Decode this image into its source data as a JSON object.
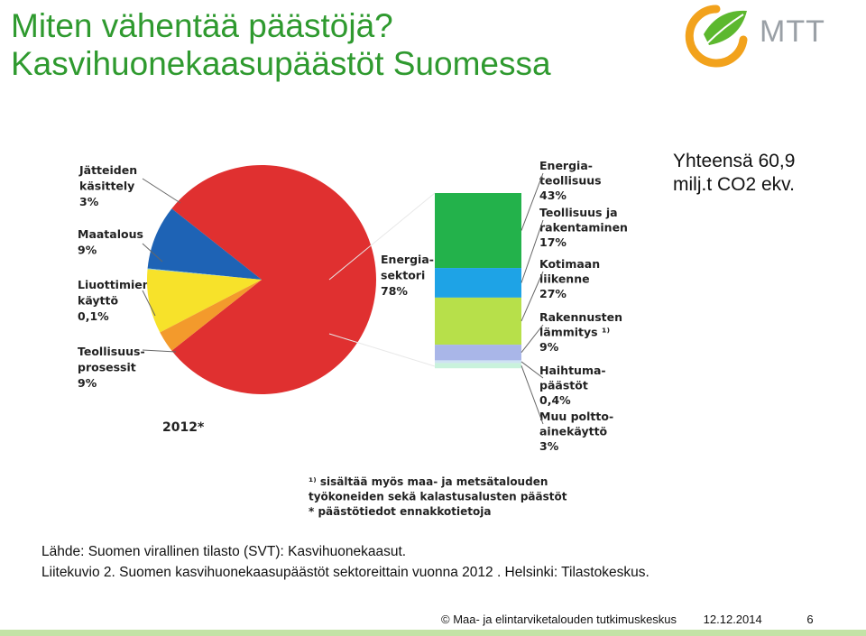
{
  "slide": {
    "title_line1": "Miten vähentää päästöjä?",
    "title_line2": "Kasvihuonekaasupäästöt Suomessa",
    "logo_text": "MTT",
    "total_line1": "Yhteensä 60,9",
    "total_line2": "milj.t CO2 ekv.",
    "source_line1": "Lähde: Suomen virallinen tilasto (SVT): Kasvihuonekaasut.",
    "source_line2": "Liitekuvio 2. Suomen kasvihuonekaasupäästöt sektoreittain vuonna 2012 . Helsinki: Tilastokeskus.",
    "footer_org": "© Maa- ja elintarviketalouden tutkimuskeskus",
    "footer_date": "12.12.2014",
    "footer_page": "6"
  },
  "colors": {
    "title": "#2f9a2f",
    "energy": "#e03030",
    "waste": "#f39a2c",
    "agriculture": "#f7e22a",
    "solvents": "#7fc6e8",
    "industrial": "#1e63b5",
    "bar_energy_industry": "#23b24b",
    "bar_industry_construction": "#1ea3e6",
    "bar_transport": "#b7e04a",
    "bar_buildings": "#a9b6e8",
    "bar_fugitive": "#cfe2f3",
    "bar_other_fuel": "#c9f2dc",
    "footer_bar": "#c3e3a6"
  },
  "chart_data": {
    "type": "pie",
    "year_label": "2012*",
    "pie": {
      "slices": [
        {
          "label_lines": [
            "Energia-",
            "sektori",
            "78%"
          ],
          "value": 78,
          "color_key": "energy"
        },
        {
          "label_lines": [
            "Teollisuus-",
            "prosessit",
            "9%"
          ],
          "value": 9,
          "color_key": "industrial"
        },
        {
          "label_lines": [
            "Liuottimien",
            "käyttö",
            "0,1%"
          ],
          "value": 0.1,
          "color_key": "solvents"
        },
        {
          "label_lines": [
            "Maatalous",
            "9%"
          ],
          "value": 9,
          "color_key": "agriculture"
        },
        {
          "label_lines": [
            "Jätteiden",
            "käsittely",
            "3%"
          ],
          "value": 3,
          "color_key": "waste"
        }
      ]
    },
    "breakdown_bar": {
      "segments": [
        {
          "label_lines": [
            "Energia-",
            "teollisuus",
            "43%"
          ],
          "value": 43,
          "color_key": "bar_energy_industry"
        },
        {
          "label_lines": [
            "Teollisuus ja",
            "rakentaminen",
            "17%"
          ],
          "value": 17,
          "color_key": "bar_industry_construction"
        },
        {
          "label_lines": [
            "Kotimaan",
            "liikenne",
            "27%"
          ],
          "value": 27,
          "color_key": "bar_transport"
        },
        {
          "label_lines": [
            "Rakennusten",
            "lämmitys ¹⁾",
            "9%"
          ],
          "value": 9,
          "color_key": "bar_buildings"
        },
        {
          "label_lines": [
            "Haihtuma-",
            "päästöt",
            "0,4%"
          ],
          "value": 0.4,
          "color_key": "bar_fugitive"
        },
        {
          "label_lines": [
            "Muu poltto-",
            "ainekäyttö",
            "3%"
          ],
          "value": 3,
          "color_key": "bar_other_fuel"
        }
      ]
    },
    "footnotes": [
      "¹⁾ sisältää myös maa- ja metsätalouden",
      "työkoneiden sekä kalastusalusten päästöt",
      "* päästötiedot ennakkotietoja"
    ]
  }
}
